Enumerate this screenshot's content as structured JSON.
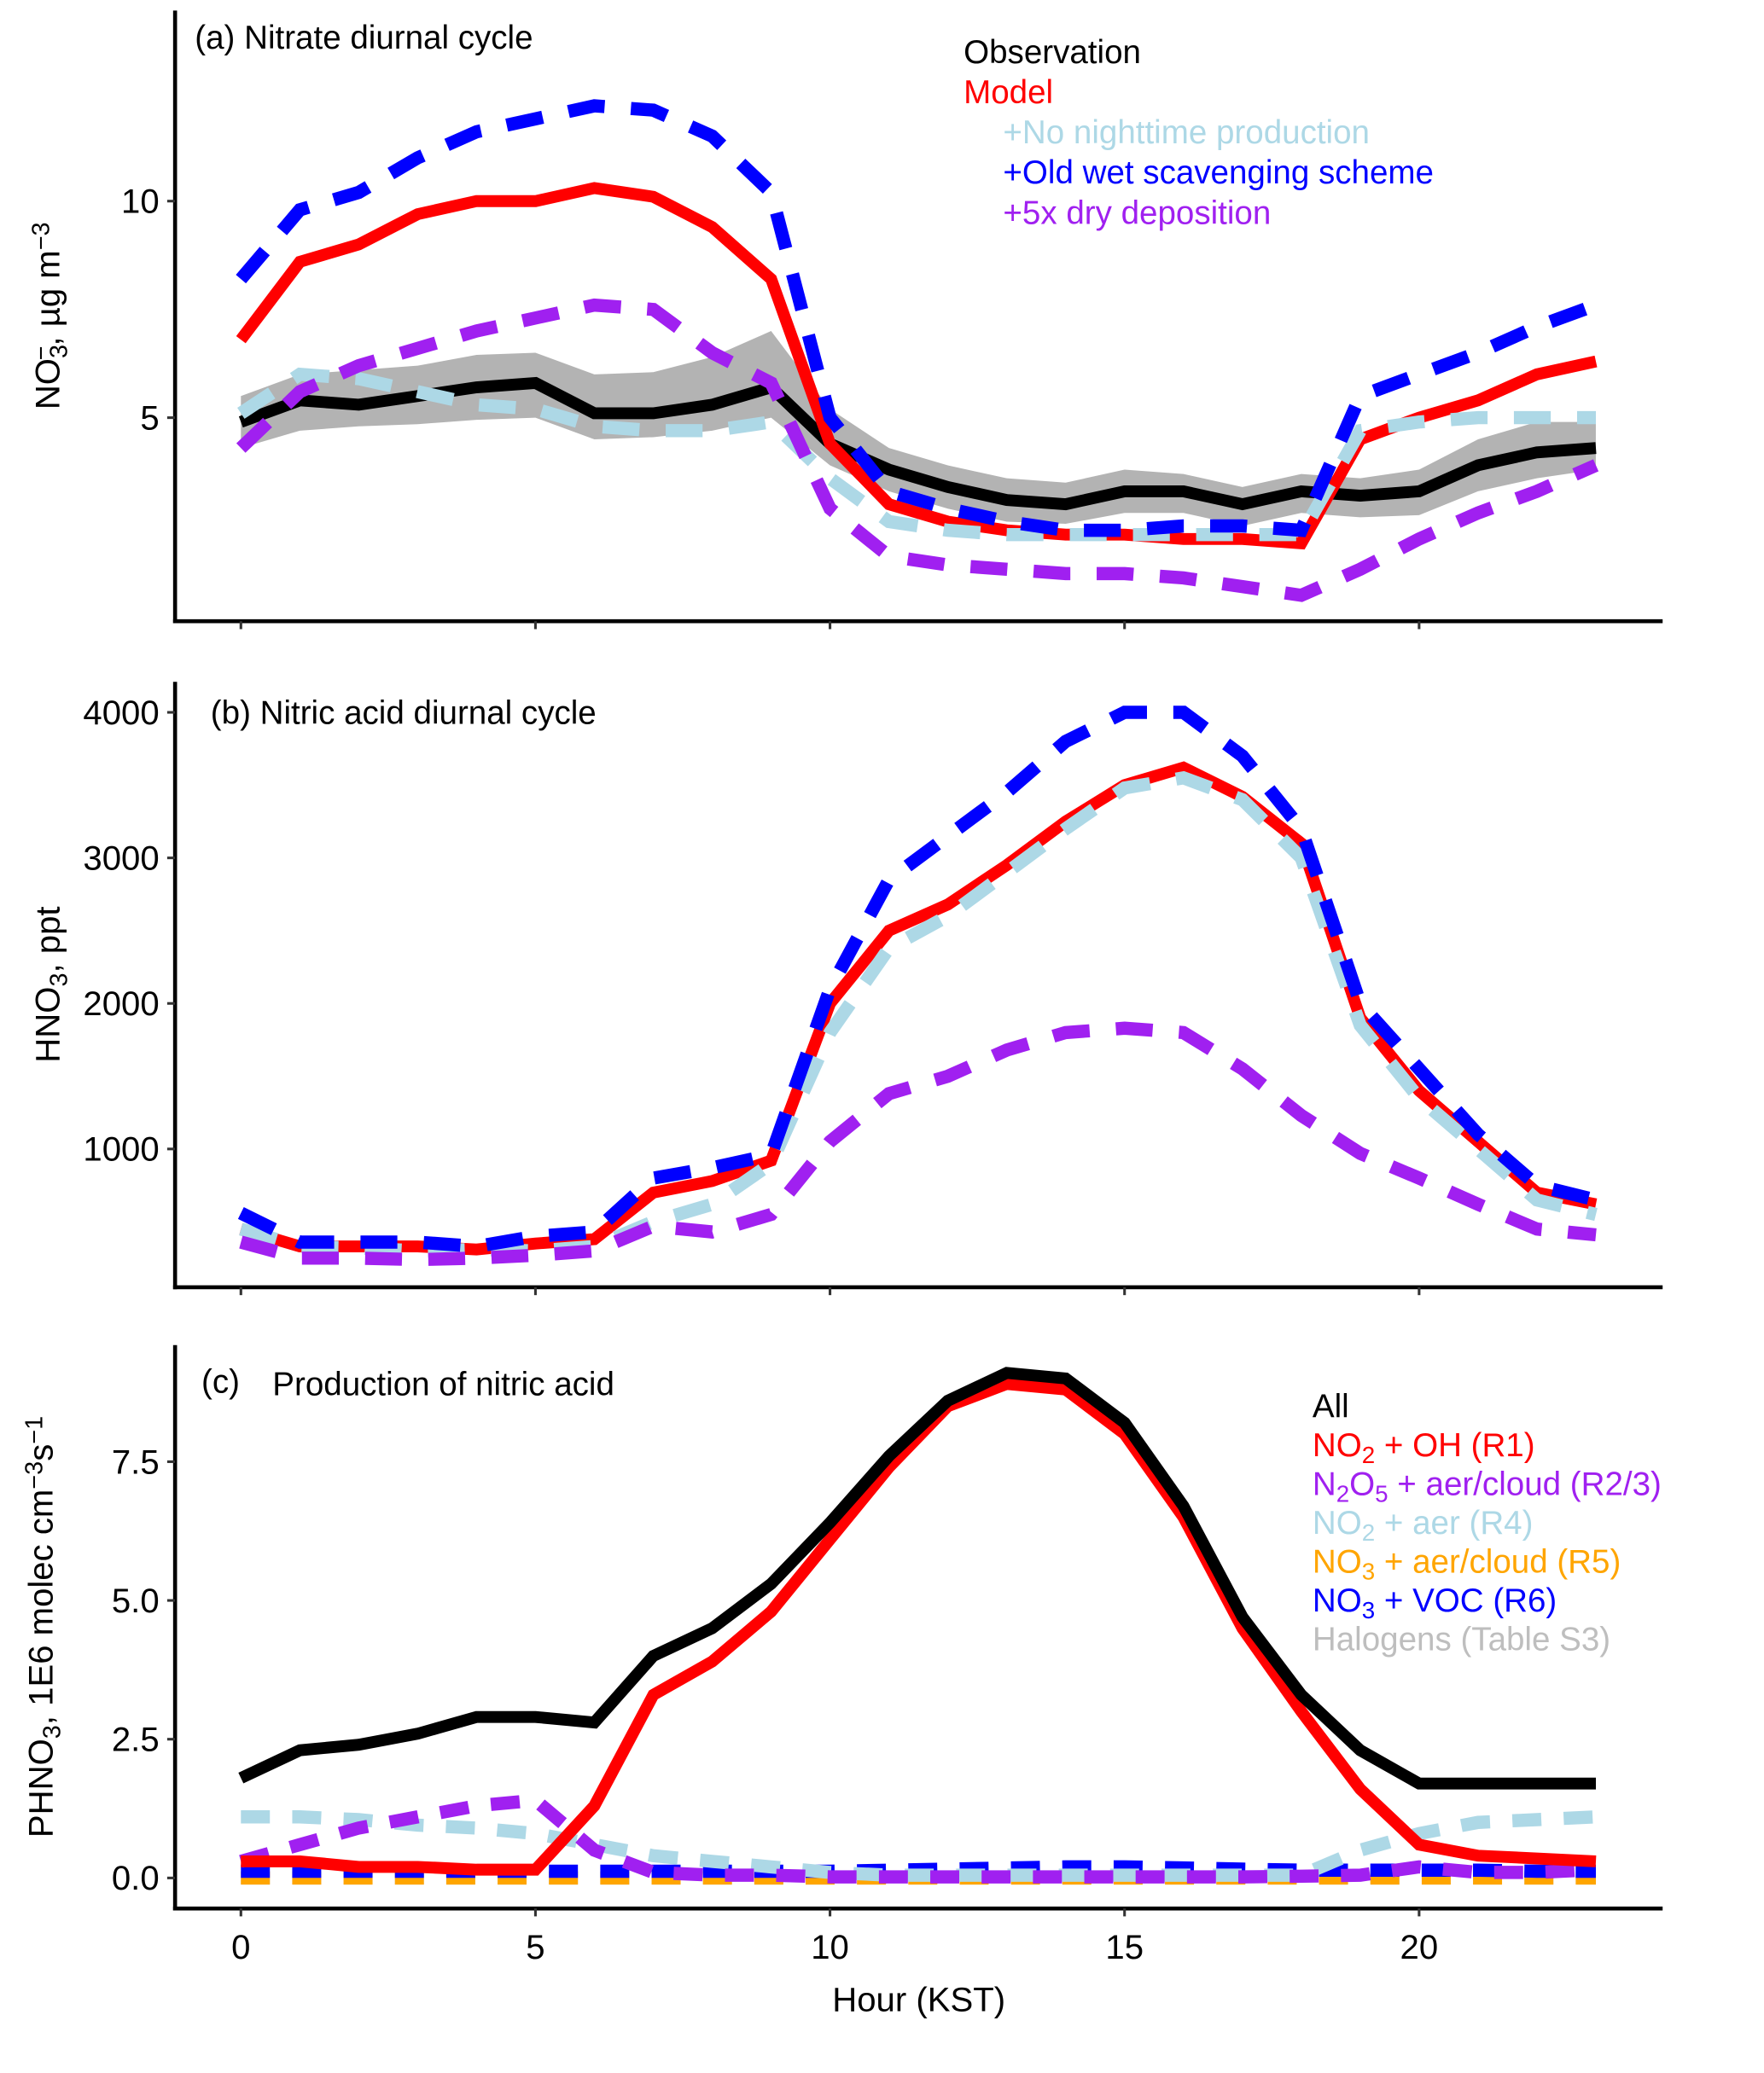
{
  "chart_data": [
    {
      "id": "a",
      "type": "line",
      "title": "(a) Nitrate diurnal cycle",
      "xlabel": "",
      "ylabel": "NO3-, µg m-3",
      "ylabel_parts": {
        "main": "NO",
        "sub": "3",
        "sup": "−",
        "rest": ", µg m",
        "unit_sup": "−3"
      },
      "xlim": [
        -1,
        24.5
      ],
      "ylim": [
        0.3,
        14.4
      ],
      "yticks": [
        5,
        10
      ],
      "ytick_labels": [
        "5",
        "10"
      ],
      "xticks": [
        0,
        5,
        10,
        15,
        20
      ],
      "xtick_labels_shown": false,
      "grid": false,
      "legend_position": "top-right",
      "x": [
        0,
        1,
        2,
        3,
        4,
        5,
        6,
        7,
        8,
        9,
        10,
        11,
        12,
        13,
        14,
        15,
        16,
        17,
        18,
        19,
        20,
        21,
        22,
        23
      ],
      "band": {
        "name": "Observation range",
        "color": "#b3b3b3",
        "lower": [
          4.3,
          4.7,
          4.8,
          4.85,
          4.95,
          5.0,
          4.5,
          4.55,
          4.7,
          5.0,
          3.9,
          3.3,
          2.9,
          2.6,
          2.55,
          2.8,
          2.8,
          2.5,
          2.8,
          2.7,
          2.75,
          3.3,
          3.6,
          3.8
        ],
        "upper": [
          5.5,
          6.0,
          6.1,
          6.2,
          6.45,
          6.5,
          6.0,
          6.05,
          6.4,
          7.0,
          5.2,
          4.3,
          3.9,
          3.6,
          3.5,
          3.8,
          3.7,
          3.4,
          3.7,
          3.6,
          3.8,
          4.5,
          4.9,
          4.9
        ]
      },
      "series": [
        {
          "name": "Observation",
          "color": "#000000",
          "dash": "solid",
          "values": [
            4.9,
            5.4,
            5.3,
            5.5,
            5.7,
            5.8,
            5.1,
            5.1,
            5.3,
            5.7,
            4.4,
            3.8,
            3.4,
            3.1,
            3.0,
            3.3,
            3.3,
            3.0,
            3.3,
            3.2,
            3.3,
            3.9,
            4.2,
            4.3
          ]
        },
        {
          "name": "Model",
          "color": "#ff0000",
          "dash": "solid",
          "values": [
            6.8,
            8.6,
            9.0,
            9.7,
            10.0,
            10.0,
            10.3,
            10.1,
            9.4,
            8.2,
            4.4,
            3.0,
            2.6,
            2.4,
            2.3,
            2.3,
            2.2,
            2.2,
            2.1,
            4.5,
            5.0,
            5.4,
            6.0,
            6.3
          ]
        },
        {
          "name": "+No nighttime production",
          "color": "#add8e6",
          "dash": "dashed",
          "values": [
            5.1,
            6.0,
            5.9,
            5.6,
            5.3,
            5.2,
            4.8,
            4.7,
            4.7,
            4.9,
            3.6,
            2.6,
            2.4,
            2.3,
            2.3,
            2.3,
            2.3,
            2.3,
            2.3,
            4.7,
            4.9,
            5.0,
            5.0,
            5.0
          ]
        },
        {
          "name": "+Old wet scavenging scheme",
          "color": "#0000ff",
          "dash": "dashed",
          "values": [
            8.2,
            9.8,
            10.2,
            11.0,
            11.6,
            11.9,
            12.2,
            12.1,
            11.5,
            10.2,
            5.0,
            3.3,
            2.9,
            2.6,
            2.4,
            2.4,
            2.5,
            2.5,
            2.4,
            5.5,
            6.0,
            6.5,
            7.1,
            7.6
          ]
        },
        {
          "name": "+5x dry deposition",
          "color": "#a020f0",
          "dash": "dashed",
          "values": [
            4.3,
            5.6,
            6.2,
            6.6,
            7.0,
            7.3,
            7.6,
            7.5,
            6.5,
            5.8,
            2.9,
            1.8,
            1.6,
            1.5,
            1.4,
            1.4,
            1.3,
            1.1,
            0.9,
            1.5,
            2.2,
            2.8,
            3.3,
            3.9
          ]
        }
      ],
      "legend": [
        {
          "label": "Observation",
          "color": "#000000",
          "indent": false
        },
        {
          "label": "Model",
          "color": "#ff0000",
          "indent": false
        },
        {
          "label": "+No nighttime production",
          "color": "#add8e6",
          "indent": true
        },
        {
          "label": "+Old wet scavenging scheme",
          "color": "#0000ff",
          "indent": true
        },
        {
          "label": "+5x dry deposition",
          "color": "#a020f0",
          "indent": true
        }
      ]
    },
    {
      "id": "b",
      "type": "line",
      "title": "(b) Nitric acid diurnal cycle",
      "xlabel": "",
      "ylabel": "HNO3, ppt",
      "ylabel_parts": {
        "main": "HNO",
        "sub": "3",
        "rest": ", ppt"
      },
      "xlim": [
        -1,
        24.5
      ],
      "ylim": [
        50,
        4210
      ],
      "yticks": [
        1000,
        2000,
        3000,
        4000
      ],
      "ytick_labels": [
        "1000",
        "2000",
        "3000",
        "4000"
      ],
      "xticks": [
        0,
        5,
        10,
        15,
        20
      ],
      "xtick_labels_shown": false,
      "grid": false,
      "x": [
        0,
        1,
        2,
        3,
        4,
        5,
        6,
        7,
        8,
        9,
        10,
        11,
        12,
        13,
        14,
        15,
        16,
        17,
        18,
        19,
        20,
        21,
        22,
        23
      ],
      "series": [
        {
          "name": "Model",
          "color": "#ff0000",
          "dash": "solid",
          "values": [
            450,
            330,
            330,
            330,
            310,
            350,
            380,
            700,
            780,
            920,
            2000,
            2500,
            2680,
            2950,
            3250,
            3500,
            3620,
            3420,
            3100,
            1900,
            1400,
            1050,
            700,
            620
          ]
        },
        {
          "name": "+No nighttime production",
          "color": "#add8e6",
          "dash": "dashed",
          "values": [
            450,
            330,
            320,
            300,
            310,
            300,
            330,
            500,
            620,
            900,
            1800,
            2380,
            2600,
            2900,
            3200,
            3480,
            3550,
            3400,
            3000,
            1850,
            1350,
            1000,
            650,
            550
          ]
        },
        {
          "name": "+Old wet scavenging scheme",
          "color": "#0000ff",
          "dash": "dashed",
          "values": [
            560,
            360,
            360,
            360,
            330,
            400,
            430,
            800,
            870,
            960,
            2100,
            2850,
            3150,
            3450,
            3800,
            4000,
            4000,
            3700,
            3200,
            2000,
            1550,
            1100,
            750,
            650
          ]
        },
        {
          "name": "+5x dry deposition",
          "color": "#a020f0",
          "dash": "dashed",
          "values": [
            360,
            250,
            250,
            240,
            250,
            270,
            300,
            470,
            430,
            550,
            1050,
            1380,
            1500,
            1680,
            1800,
            1830,
            1800,
            1550,
            1230,
            970,
            800,
            620,
            450,
            410
          ]
        }
      ]
    },
    {
      "id": "c",
      "type": "line",
      "title": "Production of nitric acid",
      "title_prefix": "(c)",
      "xlabel": "Hour (KST)",
      "ylabel": "PHNO3, 1E6 molec cm-3 s-1",
      "ylabel_parts": {
        "main": "PHNO",
        "sub": "3",
        "rest": ", 1E6 molec cm",
        "sup1": "−3",
        "rest2": "s",
        "sup2": "−1"
      },
      "xlim": [
        -1,
        24.5
      ],
      "ylim": [
        -0.55,
        9.6
      ],
      "yticks": [
        0.0,
        2.5,
        5.0,
        7.5
      ],
      "ytick_labels": [
        "0.0",
        "2.5",
        "5.0",
        "7.5"
      ],
      "xticks": [
        0,
        5,
        10,
        15,
        20
      ],
      "xtick_labels": [
        "0",
        "5",
        "10",
        "15",
        "20"
      ],
      "grid": false,
      "legend_position": "right",
      "x": [
        0,
        1,
        2,
        3,
        4,
        5,
        6,
        7,
        8,
        9,
        10,
        11,
        12,
        13,
        14,
        15,
        16,
        17,
        18,
        19,
        20,
        21,
        22,
        23
      ],
      "series": [
        {
          "name": "Halogens (Table S3)",
          "color": "#bebebe",
          "dash": "dashed",
          "values": [
            0,
            0,
            0,
            0,
            0,
            0,
            0,
            0,
            0,
            0,
            0,
            0,
            0,
            0,
            0,
            0,
            0,
            0,
            0,
            0,
            0,
            0,
            0,
            0
          ]
        },
        {
          "name": "NO3 + aer/cloud (R5)",
          "color": "#ffa500",
          "dash": "dashed",
          "values": [
            0,
            0,
            0,
            0,
            0,
            0,
            0,
            0,
            0,
            0,
            0,
            0,
            0,
            0,
            0,
            0,
            0,
            0,
            0,
            0,
            0,
            0,
            0,
            0
          ]
        },
        {
          "name": "NO3 + VOC (R6)",
          "color": "#0000ff",
          "dash": "dashed",
          "values": [
            0.12,
            0.12,
            0.12,
            0.12,
            0.12,
            0.12,
            0.12,
            0.12,
            0.12,
            0.12,
            0.12,
            0.14,
            0.16,
            0.18,
            0.2,
            0.2,
            0.18,
            0.16,
            0.14,
            0.14,
            0.14,
            0.14,
            0.12,
            0.12
          ]
        },
        {
          "name": "NO2 + aer (R4)",
          "color": "#add8e6",
          "dash": "dashed",
          "values": [
            1.1,
            1.1,
            1.05,
            0.95,
            0.9,
            0.8,
            0.6,
            0.4,
            0.3,
            0.2,
            0.1,
            0.05,
            0.05,
            0.05,
            0.05,
            0.05,
            0.05,
            0.05,
            0.05,
            0.5,
            0.8,
            1.0,
            1.05,
            1.1
          ]
        },
        {
          "name": "N2O5 + aer/cloud (R2/3)",
          "color": "#a020f0",
          "dash": "dashed",
          "values": [
            0.3,
            0.6,
            0.9,
            1.1,
            1.3,
            1.4,
            0.5,
            0.1,
            0.05,
            0.05,
            0.02,
            0.02,
            0.02,
            0.02,
            0.02,
            0.02,
            0.02,
            0.02,
            0.03,
            0.05,
            0.2,
            0.1,
            0.1,
            0.15
          ]
        },
        {
          "name": "NO2 + OH (R1)",
          "color": "#ff0000",
          "dash": "solid",
          "values": [
            0.3,
            0.3,
            0.2,
            0.2,
            0.15,
            0.15,
            1.3,
            3.3,
            3.9,
            4.8,
            6.1,
            7.4,
            8.5,
            8.9,
            8.8,
            8.0,
            6.5,
            4.5,
            3.0,
            1.6,
            0.6,
            0.4,
            0.35,
            0.3
          ]
        },
        {
          "name": "All",
          "color": "#000000",
          "dash": "solid",
          "values": [
            1.8,
            2.3,
            2.4,
            2.6,
            2.9,
            2.9,
            2.8,
            4.0,
            4.5,
            5.3,
            6.4,
            7.6,
            8.6,
            9.1,
            9.0,
            8.2,
            6.7,
            4.7,
            3.3,
            2.3,
            1.7,
            1.7,
            1.7,
            1.7
          ]
        }
      ],
      "legend": [
        {
          "label": "All",
          "color": "#000000",
          "parts": [
            [
              "All",
              ""
            ]
          ]
        },
        {
          "label": "NO2 + OH (R1)",
          "color": "#ff0000",
          "parts": [
            [
              "NO",
              ""
            ],
            [
              "2",
              "sub"
            ],
            [
              " + OH (R1)",
              ""
            ]
          ]
        },
        {
          "label": "N2O5 + aer/cloud (R2/3)",
          "color": "#a020f0",
          "parts": [
            [
              "N",
              ""
            ],
            [
              "2",
              "sub"
            ],
            [
              "O",
              ""
            ],
            [
              "5",
              "sub"
            ],
            [
              " + aer/cloud (R2/3)",
              ""
            ]
          ]
        },
        {
          "label": "NO2 + aer (R4)",
          "color": "#add8e6",
          "parts": [
            [
              "NO",
              ""
            ],
            [
              "2",
              "sub"
            ],
            [
              " + aer (R4)",
              ""
            ]
          ]
        },
        {
          "label": "NO3 + aer/cloud (R5)",
          "color": "#ffa500",
          "parts": [
            [
              "NO",
              ""
            ],
            [
              "3",
              "sub"
            ],
            [
              " + aer/cloud (R5)",
              ""
            ]
          ]
        },
        {
          "label": "NO3 + VOC (R6)",
          "color": "#0000ff",
          "parts": [
            [
              "NO",
              ""
            ],
            [
              "3",
              "sub"
            ],
            [
              " + VOC (R6)",
              ""
            ]
          ]
        },
        {
          "label": "Halogens (Table S3)",
          "color": "#bebebe",
          "parts": [
            [
              "Halogens (Table S3)",
              ""
            ]
          ]
        }
      ]
    }
  ]
}
